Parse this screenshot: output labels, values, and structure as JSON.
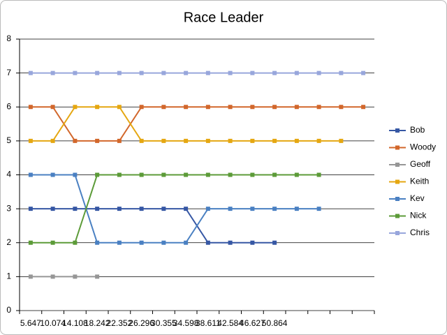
{
  "chart_data": {
    "type": "line",
    "title": "Race Leader",
    "categories": [
      "5.647",
      "10.074",
      "14.108",
      "18.242",
      "22.352",
      "26.296",
      "30.355",
      "34.598",
      "38.611",
      "42.584",
      "46.627",
      "50.864",
      null,
      null,
      null,
      null
    ],
    "series": [
      {
        "name": "Bob",
        "color": "#3657a4",
        "values": [
          3,
          3,
          3,
          3,
          3,
          3,
          3,
          3,
          2,
          2,
          2,
          2,
          null,
          null,
          null,
          null
        ]
      },
      {
        "name": "Woody",
        "color": "#d2672b",
        "values": [
          6,
          6,
          5,
          5,
          5,
          6,
          6,
          6,
          6,
          6,
          6,
          6,
          6,
          6,
          6,
          6
        ]
      },
      {
        "name": "Geoff",
        "color": "#969696",
        "values": [
          1,
          1,
          1,
          1,
          null,
          null,
          null,
          null,
          null,
          null,
          null,
          null,
          null,
          null,
          null,
          null
        ]
      },
      {
        "name": "Keith",
        "color": "#e5a711",
        "values": [
          5,
          5,
          6,
          6,
          6,
          5,
          5,
          5,
          5,
          5,
          5,
          5,
          5,
          5,
          5,
          null
        ]
      },
      {
        "name": "Kev",
        "color": "#4a80c2",
        "values": [
          4,
          4,
          4,
          2,
          2,
          2,
          2,
          2,
          3,
          3,
          3,
          3,
          3,
          3,
          null,
          null
        ]
      },
      {
        "name": "Nick",
        "color": "#5c9b38",
        "values": [
          2,
          2,
          2,
          4,
          4,
          4,
          4,
          4,
          4,
          4,
          4,
          4,
          4,
          4,
          null,
          null
        ]
      },
      {
        "name": "Chris",
        "color": "#98a6dc",
        "values": [
          7,
          7,
          7,
          7,
          7,
          7,
          7,
          7,
          7,
          7,
          7,
          7,
          7,
          7,
          7,
          7
        ]
      }
    ],
    "ylim": [
      0,
      8
    ],
    "yticks": [
      0,
      1,
      2,
      3,
      4,
      5,
      6,
      7,
      8
    ],
    "grid": true,
    "legend": "right"
  }
}
